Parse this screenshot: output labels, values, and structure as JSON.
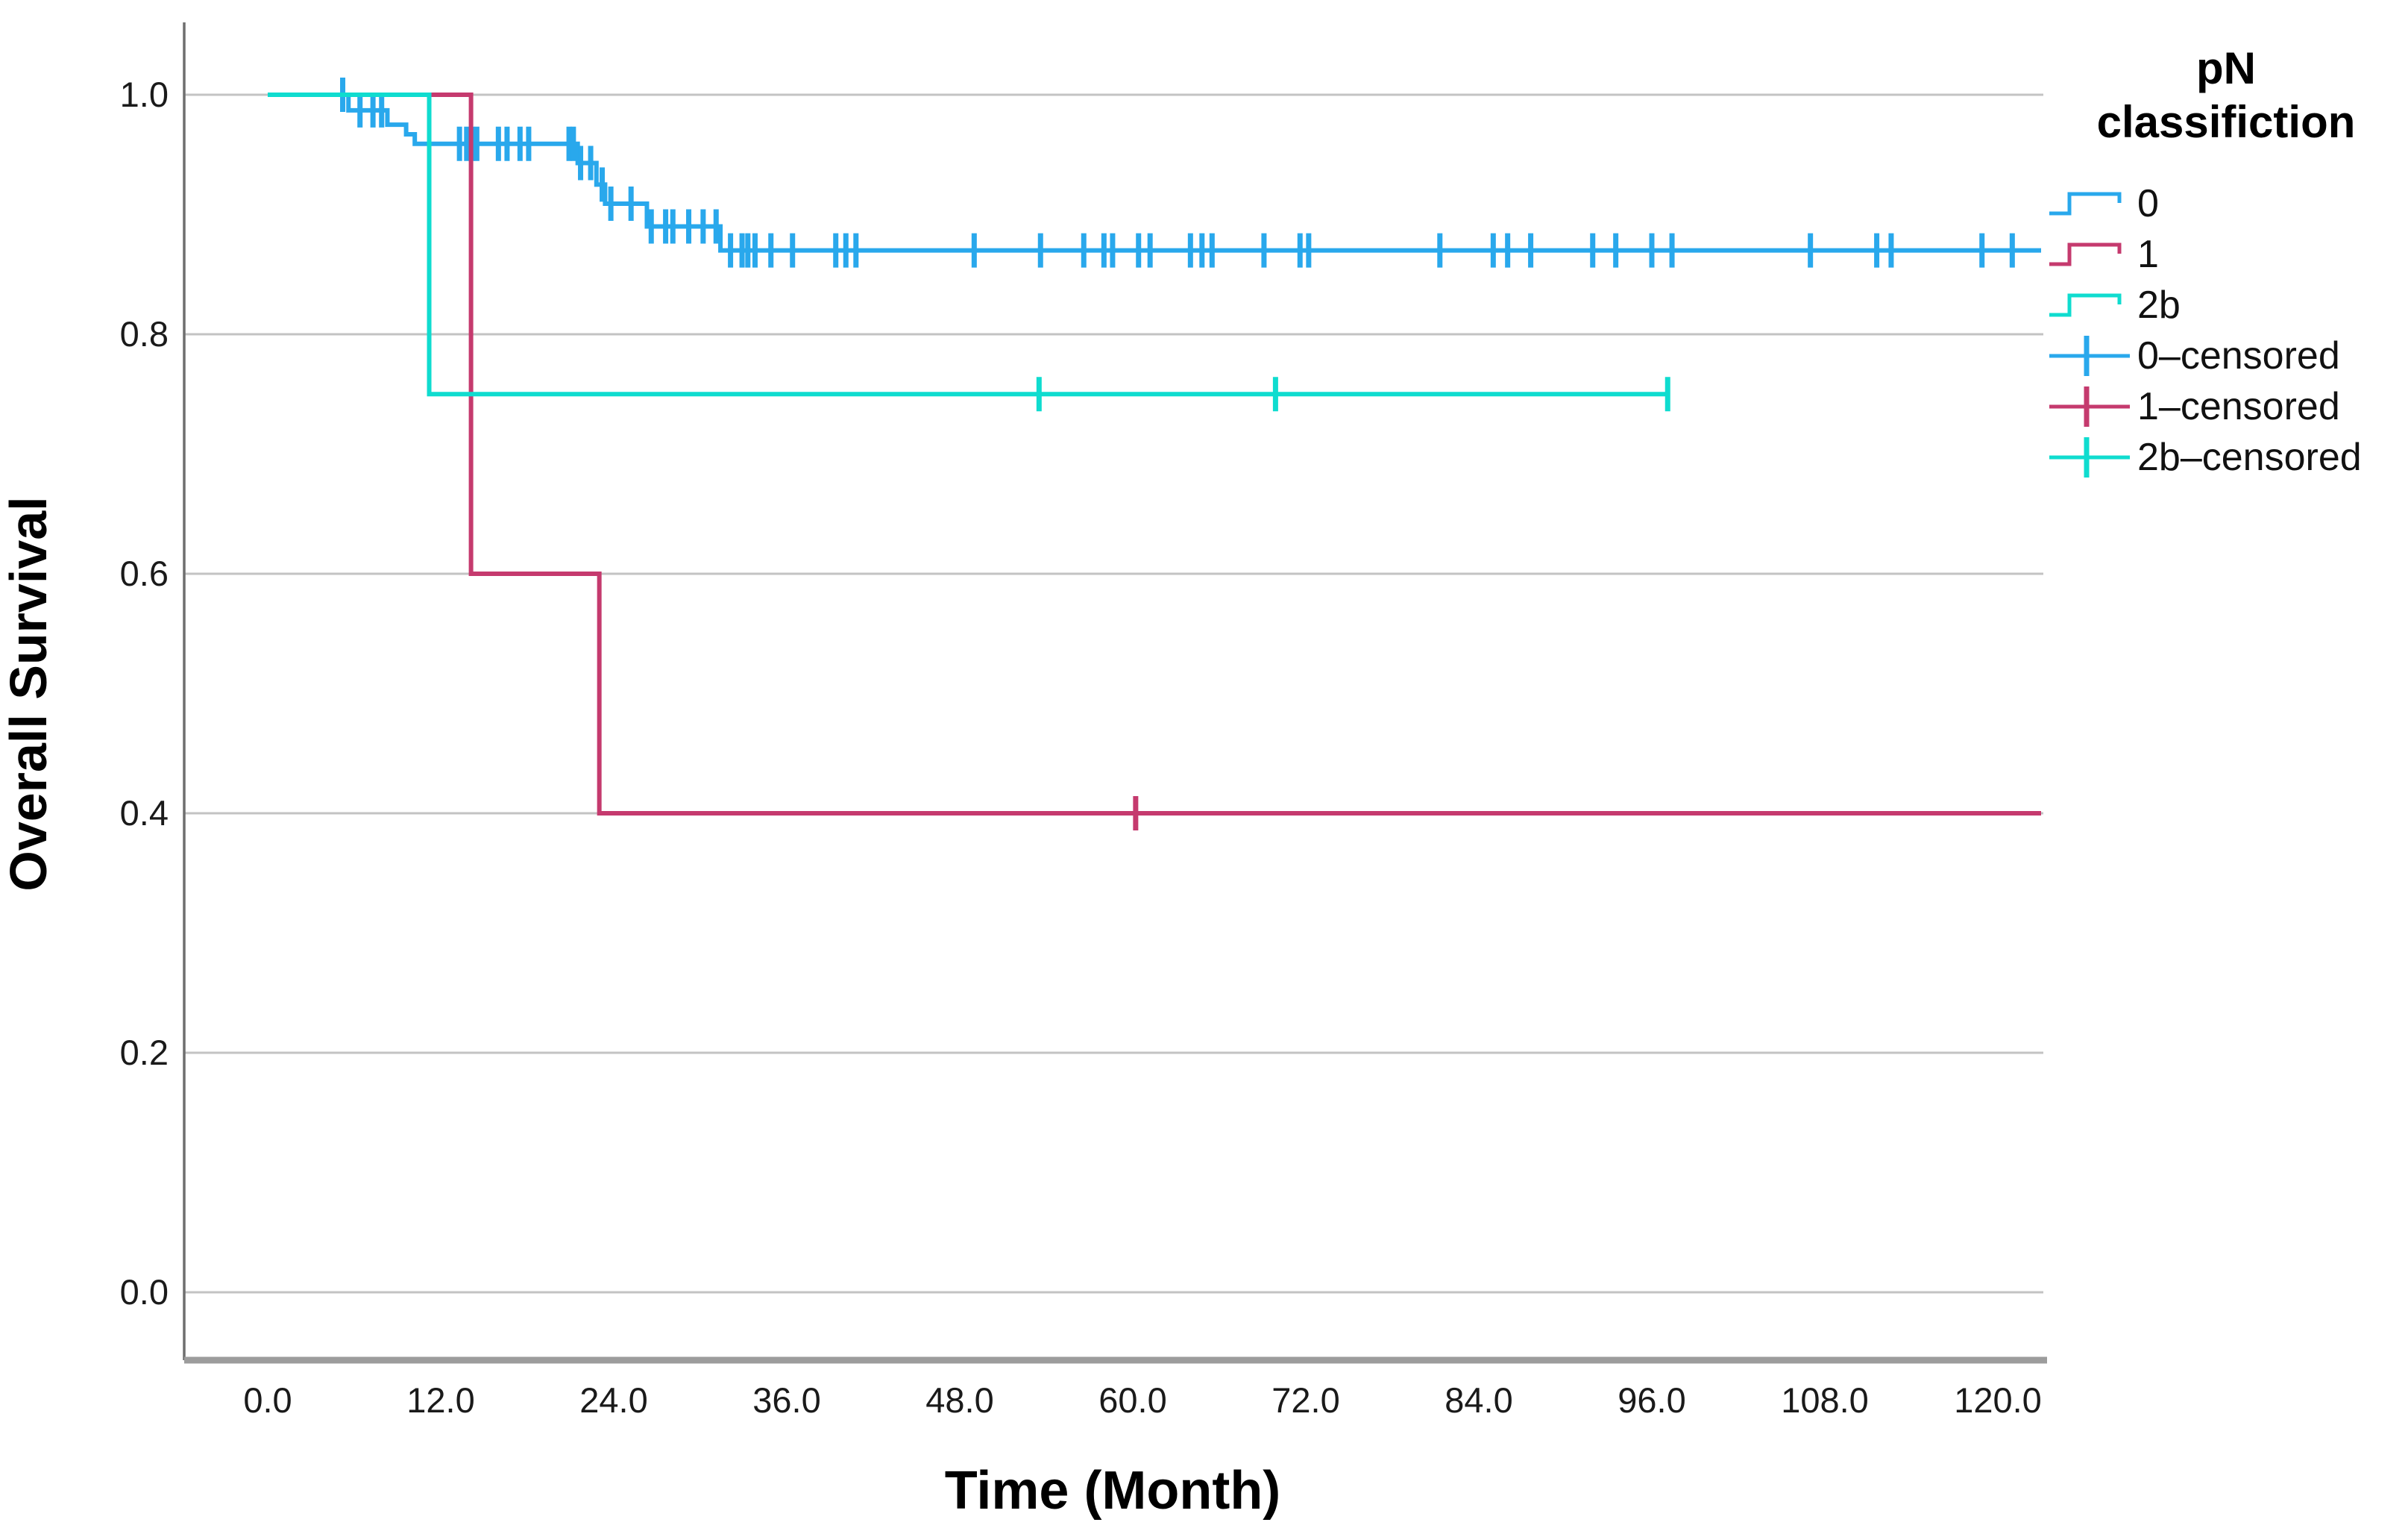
{
  "figure": {
    "background": "#ffffff",
    "kind": "Kaplan-Meier overall survival plot"
  },
  "y_axis": {
    "title": "Overall Survival",
    "tick_labels": [
      "1.0",
      "0.8",
      "0.6",
      "0.4",
      "0.2",
      "0.0"
    ],
    "tick_values": [
      1.0,
      0.8,
      0.6,
      0.4,
      0.2,
      0.0
    ]
  },
  "x_axis": {
    "title": "Time (Month)",
    "tick_labels": [
      "0.0",
      "12.0",
      "24.0",
      "36.0",
      "48.0",
      "60.0",
      "72.0",
      "84.0",
      "96.0",
      "108.0",
      "120.0"
    ],
    "tick_values": [
      0,
      12,
      24,
      36,
      48,
      60,
      72,
      84,
      96,
      108,
      120
    ]
  },
  "legend": {
    "title_line1": "pN",
    "title_line2": "classifiction",
    "items": [
      {
        "label": "0",
        "type": "step",
        "color": "#29A8EC"
      },
      {
        "label": "1",
        "type": "step",
        "color": "#C53A6E"
      },
      {
        "label": "2b",
        "type": "step",
        "color": "#0FDCCF"
      },
      {
        "label": "0–censored",
        "type": "censored",
        "color": "#29A8EC"
      },
      {
        "label": "1–censored",
        "type": "censored",
        "color": "#C53A6E"
      },
      {
        "label": "2b–censored",
        "type": "censored",
        "color": "#0FDCCF"
      }
    ]
  },
  "colors": {
    "blue": "#29A8EC",
    "crimson": "#C53A6E",
    "cyan": "#0FDCCF",
    "gridline": "#C3C3C3",
    "y_axis_line": "#6F6F6F",
    "x_axis_line": "#9C9C9C",
    "text": "#1a1a1a"
  },
  "chart_data": {
    "type": "line",
    "subtype": "kaplan-meier-step",
    "title": "",
    "xlabel": "Time (Month)",
    "ylabel": "Overall Survival",
    "xlim": [
      0,
      123.2
    ],
    "ylim": [
      0.0,
      1.0
    ],
    "grid": "horizontal-only",
    "legend_position": "right",
    "series": [
      {
        "name": "0",
        "color": "#29A8EC",
        "steps": [
          [
            0,
            1.0
          ],
          [
            5.6,
            1.0
          ],
          [
            5.6,
            0.987
          ],
          [
            8.3,
            0.987
          ],
          [
            8.3,
            0.975
          ],
          [
            9.6,
            0.975
          ],
          [
            9.6,
            0.967
          ],
          [
            10.2,
            0.967
          ],
          [
            10.2,
            0.959
          ],
          [
            21.5,
            0.959
          ],
          [
            21.5,
            0.943
          ],
          [
            22.8,
            0.943
          ],
          [
            22.8,
            0.925
          ],
          [
            23.4,
            0.925
          ],
          [
            23.4,
            0.909
          ],
          [
            26.3,
            0.909
          ],
          [
            26.3,
            0.89
          ],
          [
            31.4,
            0.89
          ],
          [
            31.4,
            0.87
          ],
          [
            123.0,
            0.87
          ]
        ],
        "censor_times": [
          5.2,
          6.4,
          7.3,
          7.9,
          13.3,
          13.8,
          14.2,
          14.5,
          16.0,
          16.6,
          17.5,
          18.1,
          20.9,
          21.2,
          21.7,
          22.4,
          23.2,
          23.8,
          25.2,
          26.6,
          27.6,
          28.1,
          29.2,
          30.2,
          31.1,
          32.1,
          32.9,
          33.3,
          33.8,
          34.9,
          36.4,
          39.4,
          40.1,
          40.8,
          49.0,
          53.6,
          56.6,
          58.0,
          58.6,
          60.4,
          61.2,
          64.0,
          64.8,
          65.5,
          69.1,
          71.6,
          72.2,
          81.3,
          85.0,
          86.0,
          87.6,
          91.9,
          93.5,
          96.0,
          97.4,
          107.0,
          111.6,
          112.6,
          118.9,
          121.0
        ]
      },
      {
        "name": "1",
        "color": "#C53A6E",
        "steps": [
          [
            0,
            1.0
          ],
          [
            14.1,
            1.0
          ],
          [
            14.1,
            0.6
          ],
          [
            23.0,
            0.6
          ],
          [
            23.0,
            0.4
          ],
          [
            123.0,
            0.4
          ]
        ],
        "censor_times": [
          60.2
        ]
      },
      {
        "name": "2b",
        "color": "#0FDCCF",
        "steps": [
          [
            0,
            1.0
          ],
          [
            11.2,
            1.0
          ],
          [
            11.2,
            0.75
          ],
          [
            97.1,
            0.75
          ]
        ],
        "censor_times": [
          53.5,
          69.9,
          97.1
        ]
      }
    ]
  }
}
